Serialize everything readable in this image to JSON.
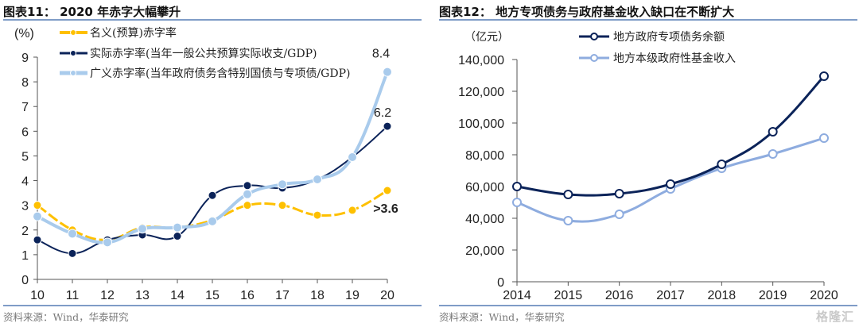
{
  "chart_data": [
    {
      "type": "line",
      "title": "图表11：  2020 年赤字大幅攀升",
      "ylabel": "(%)",
      "xlabel": "",
      "x": [
        "10",
        "11",
        "12",
        "13",
        "14",
        "15",
        "16",
        "17",
        "18",
        "19",
        "20"
      ],
      "ylim": [
        0,
        9
      ],
      "yticks": [
        "0",
        "1",
        "2",
        "3",
        "4",
        "5",
        "6",
        "7",
        "8",
        "9"
      ],
      "grid": false,
      "legend_position": "top-left",
      "series": [
        {
          "name": "名义(预算)赤字率",
          "color": "#fec000",
          "values": [
            3.0,
            2.0,
            1.6,
            2.1,
            2.1,
            2.4,
            3.0,
            3.0,
            2.6,
            2.8,
            3.6
          ]
        },
        {
          "name": "实际赤字率(当年一般公共预算实际收支/GDP)",
          "color": "#0b2359",
          "values": [
            1.6,
            1.05,
            1.6,
            1.8,
            1.75,
            3.4,
            3.8,
            3.7,
            4.05,
            4.95,
            6.2
          ]
        },
        {
          "name": "广义赤字率(当年政府债务含特别国债与专项债/GDP)",
          "color": "#a9cbec",
          "values": [
            2.55,
            1.85,
            1.5,
            2.05,
            2.1,
            2.35,
            3.45,
            3.85,
            4.05,
            4.95,
            8.4
          ]
        }
      ],
      "annotations": [
        {
          "text": "8.4",
          "series": 2,
          "index": 10
        },
        {
          "text": "6.2",
          "series": 1,
          "index": 10
        },
        {
          "text": ">3.6",
          "series": 0,
          "index": 10
        }
      ],
      "source": "资料来源：Wind，华泰研究"
    },
    {
      "type": "line",
      "title": "图表12：  地方专项债务与政府基金收入缺口在不断扩大",
      "ylabel": "（亿元）",
      "xlabel": "",
      "x": [
        "2014",
        "2015",
        "2016",
        "2017",
        "2018",
        "2019",
        "2020"
      ],
      "ylim": [
        0,
        140000
      ],
      "yticks": [
        "0",
        "20,000",
        "40,000",
        "60,000",
        "80,000",
        "100,000",
        "120,000",
        "140,000"
      ],
      "grid": false,
      "legend_position": "top-center",
      "series": [
        {
          "name": "地方政府专项债务余额",
          "color": "#0b2359",
          "values": [
            60000,
            55000,
            55500,
            61500,
            74000,
            94500,
            129500
          ]
        },
        {
          "name": "地方本级政府性基金收入",
          "color": "#8eacdf",
          "values": [
            50000,
            38500,
            42500,
            58500,
            71500,
            80500,
            90500
          ]
        }
      ],
      "source": "资料来源：Wind，华泰研究"
    }
  ],
  "watermark": "格隆汇"
}
